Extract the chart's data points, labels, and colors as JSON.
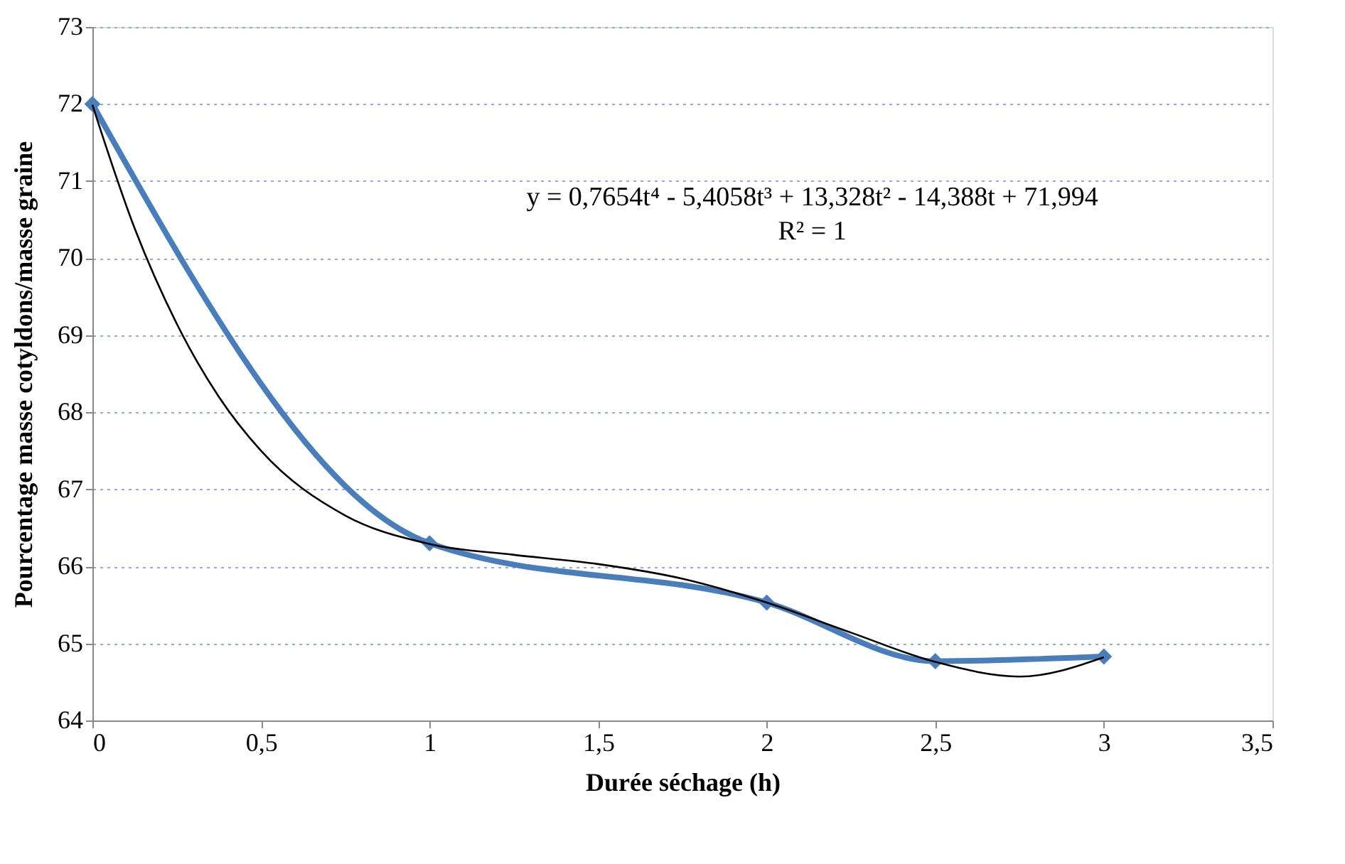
{
  "chart_data": {
    "type": "line",
    "xlabel": "Durée séchage (h)",
    "ylabel": "Pourcentage masse cotyldons/masse graine",
    "x": [
      0,
      1,
      2,
      2.5,
      3
    ],
    "series": [
      {
        "color": "#4a7ebb",
        "values": [
          72,
          66.3,
          65.53,
          64.77,
          64.83
        ],
        "marker": "diamond",
        "line_style": "solid"
      },
      {
        "type": "line",
        "color": "#000000",
        "marker": "none",
        "line_style": "solid",
        "x": [
          0,
          0.125,
          0.25,
          0.375,
          0.5,
          0.75,
          1,
          1.25,
          1.5,
          1.75,
          2,
          2.25,
          2.5,
          2.75,
          3
        ],
        "values": [
          71.99,
          70.39,
          69.15,
          68.2,
          67.5,
          66.66,
          66.29,
          66.15,
          66.03,
          65.84,
          65.53,
          65.14,
          64.76,
          64.57,
          64.82
        ]
      }
    ],
    "annotations": [
      "y = 0,7654t⁴ - 5,4058t³ + 13,328t² - 14,388t + 71,994",
      "R² = 1"
    ],
    "xlim": [
      0,
      3.5
    ],
    "xticks": [
      0,
      {
        "value": 0.5,
        "label": "0,5"
      },
      1,
      {
        "value": 1.5,
        "label": "1,5"
      },
      2,
      {
        "value": 2.5,
        "label": "2,5"
      },
      3,
      {
        "value": 3.5,
        "label": "3,5"
      }
    ],
    "ylim": [
      64,
      73
    ],
    "yticks": [
      64,
      65,
      66,
      67,
      68,
      69,
      70,
      71,
      72,
      73
    ],
    "grid": "y"
  }
}
